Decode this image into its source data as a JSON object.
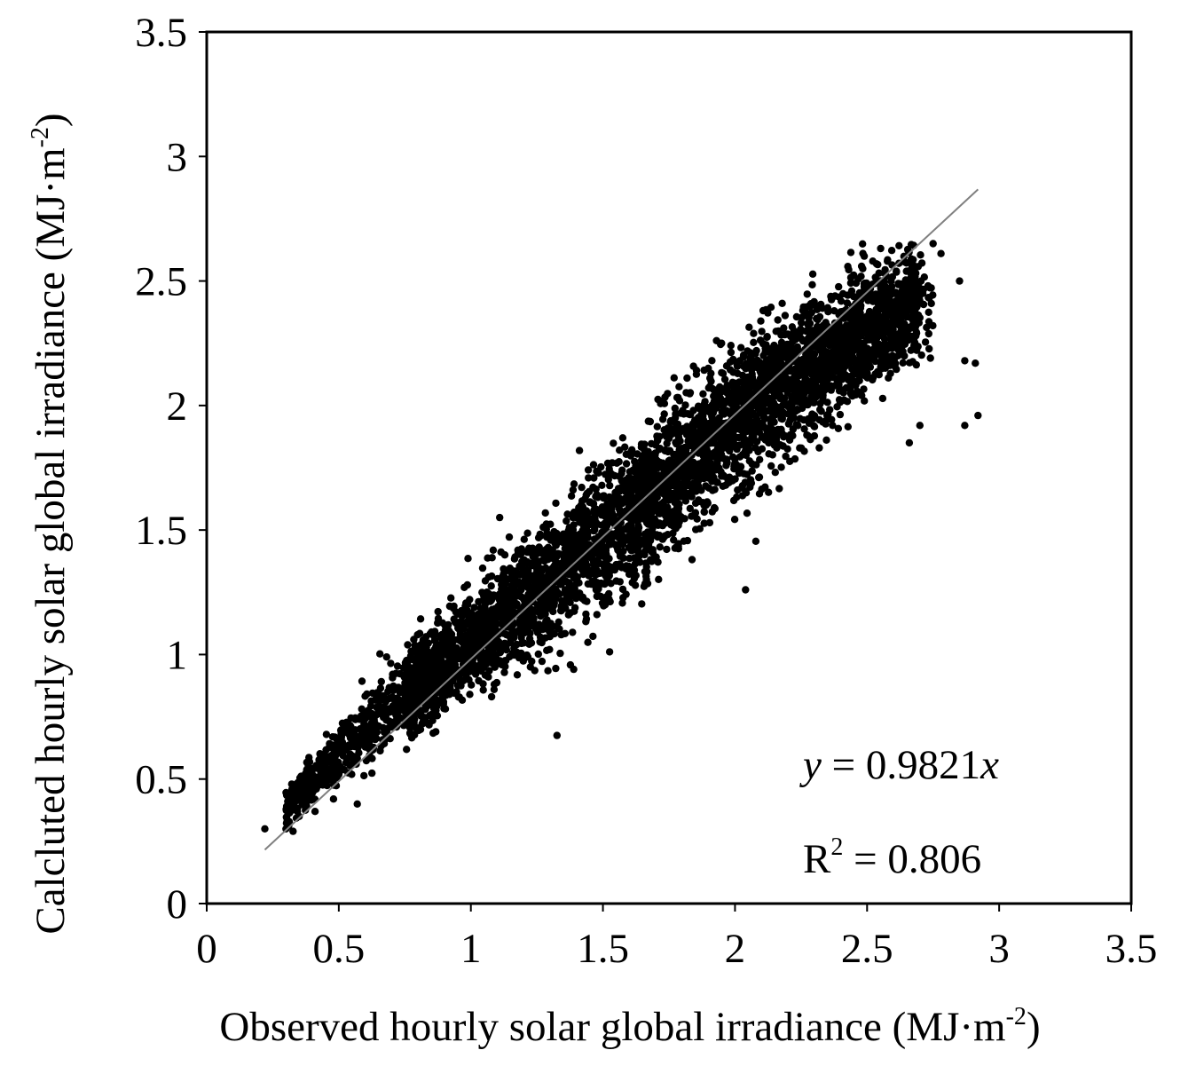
{
  "chart_data": {
    "type": "scatter",
    "xlabel": "Observed hourly solar global irradiance",
    "xlabel_unit": "(MJ·m",
    "xlabel_unit_sup": "-2",
    "xlabel_unit_close": ")",
    "ylabel": "Calcluted hourly solar global irradiance",
    "ylabel_unit": "(MJ·m",
    "ylabel_unit_sup": "-2",
    "ylabel_unit_close": ")",
    "xlim": [
      0,
      3.5
    ],
    "ylim": [
      0,
      3.5
    ],
    "x_ticks": [
      0,
      0.5,
      1,
      1.5,
      2,
      2.5,
      3,
      3.5
    ],
    "x_tick_labels": [
      "0",
      "0.5",
      "1",
      "1.5",
      "2",
      "2.5",
      "3",
      "3.5"
    ],
    "y_ticks": [
      0,
      0.5,
      1,
      1.5,
      2,
      2.5,
      3,
      3.5
    ],
    "y_tick_labels": [
      "0",
      "0.5",
      "1",
      "1.5",
      "2",
      "2.5",
      "3",
      "3.5"
    ],
    "grid": false,
    "point_color": "#000000",
    "trendline": {
      "slope": 0.9821,
      "x_range": [
        0.22,
        2.92
      ],
      "color": "#808080"
    },
    "annotation_equation": {
      "var_y": "y",
      "eq": " = 0.9821",
      "var_x": "x"
    },
    "annotation_r2": {
      "r": "R",
      "r_sup": "2",
      "value": " = 0.806"
    },
    "point_cloud": {
      "n": 5000,
      "spine": [
        [
          0.22,
          0.3
        ],
        [
          0.5,
          0.6
        ],
        [
          1.0,
          1.05
        ],
        [
          1.5,
          1.45
        ],
        [
          2.0,
          1.95
        ],
        [
          2.5,
          2.3
        ],
        [
          2.8,
          2.45
        ]
      ],
      "spread": [
        [
          0.3,
          0.07
        ],
        [
          0.8,
          0.16
        ],
        [
          1.3,
          0.24
        ],
        [
          1.8,
          0.26
        ],
        [
          2.3,
          0.24
        ],
        [
          2.8,
          0.2
        ]
      ]
    },
    "points": [
      [
        0.22,
        0.3
      ],
      [
        0.3,
        0.3
      ],
      [
        0.33,
        0.45
      ],
      [
        0.35,
        0.35
      ],
      [
        0.38,
        0.5
      ],
      [
        0.41,
        0.37
      ],
      [
        0.45,
        0.48
      ],
      [
        0.48,
        0.42
      ],
      [
        2.04,
        1.26
      ],
      [
        2.85,
        2.5
      ],
      [
        2.87,
        2.18
      ],
      [
        2.91,
        2.17
      ],
      [
        2.92,
        1.96
      ],
      [
        2.87,
        1.92
      ],
      [
        2.78,
        2.61
      ],
      [
        2.75,
        2.65
      ],
      [
        2.7,
        1.92
      ],
      [
        2.66,
        1.85
      ],
      [
        2.74,
        2.19
      ],
      [
        0.57,
        0.4
      ]
    ]
  }
}
